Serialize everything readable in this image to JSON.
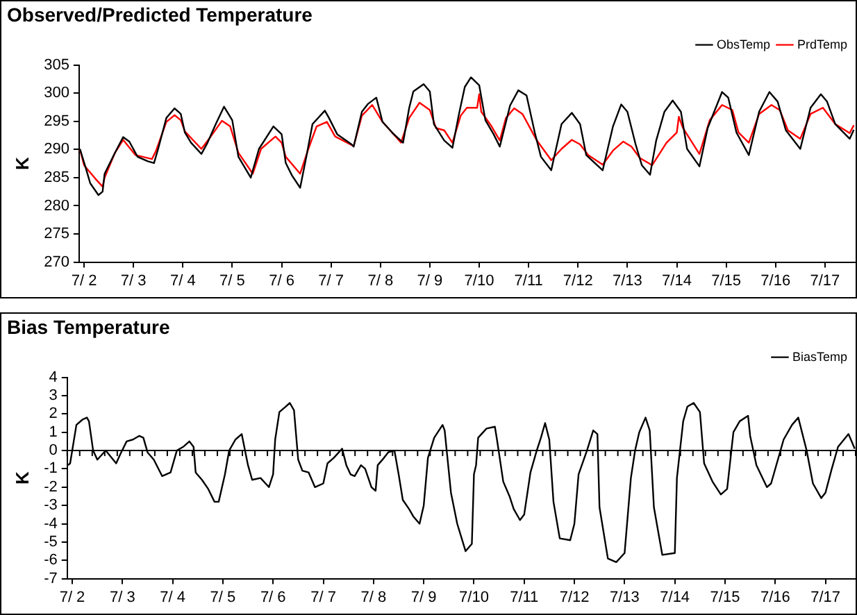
{
  "chart_data": [
    {
      "type": "line",
      "title": "Observed/Predicted Temperature",
      "ylabel": "K",
      "legend": "top right",
      "xlim": [
        "--07-01T21:36",
        "--07-17T14:53"
      ],
      "xticks": [
        {
          "value": "--07-02",
          "label": "7/ 2"
        },
        {
          "value": "--07-03",
          "label": "7/ 3"
        },
        {
          "value": "--07-04",
          "label": "7/ 4"
        },
        {
          "value": "--07-05",
          "label": "7/ 5"
        },
        {
          "value": "--07-06",
          "label": "7/ 6"
        },
        {
          "value": "--07-07",
          "label": "7/ 7"
        },
        {
          "value": "--07-08",
          "label": "7/ 8"
        },
        {
          "value": "--07-09",
          "label": "7/ 9"
        },
        {
          "value": "--07-10",
          "label": "7/10"
        },
        {
          "value": "--07-11",
          "label": "7/11"
        },
        {
          "value": "--07-12",
          "label": "7/12"
        },
        {
          "value": "--07-13",
          "label": "7/13"
        },
        {
          "value": "--07-14",
          "label": "7/14"
        },
        {
          "value": "--07-15",
          "label": "7/15"
        },
        {
          "value": "--07-16",
          "label": "7/16"
        },
        {
          "value": "--07-17",
          "label": "7/17"
        }
      ],
      "ylim": [
        270,
        305
      ],
      "yticks": [
        270,
        275,
        280,
        285,
        290,
        295,
        300,
        305
      ],
      "series": [
        {
          "name": "ObsTemp",
          "color": "#000000",
          "x": [
            "--07-01T22:00",
            "--07-02T01:00",
            "--07-02T03:00",
            "--07-02T07:00",
            "--07-02T09:00",
            "--07-02T10:00",
            "--07-02T15:00",
            "--07-02T19:00",
            "--07-02T22:00",
            "--07-03T02:00",
            "--07-03T07:00",
            "--07-03T10:00",
            "--07-03T12:00",
            "--07-03T16:00",
            "--07-03T20:00",
            "--07-03T23:00",
            "--07-04T01:00",
            "--07-04T04:00",
            "--07-04T09:00",
            "--07-04T12:00",
            "--07-04T16:00",
            "--07-04T20:00",
            "--07-05T00:00",
            "--07-05T03:00",
            "--07-05T09:00",
            "--07-05T13:00",
            "--07-05T20:00",
            "--07-06T00:00",
            "--07-06T02:00",
            "--07-06T05:00",
            "--07-06T09:00",
            "--07-06T12:00",
            "--07-06T15:00",
            "--07-06T21:00",
            "--07-06T23:00",
            "--07-07T03:00",
            "--07-07T10:00",
            "--07-07T11:00",
            "--07-07T15:00",
            "--07-07T18:00",
            "--07-07T22:00",
            "--07-08T01:00",
            "--07-08T06:00",
            "--07-08T11:00",
            "--07-08T14:00",
            "--07-08T16:00",
            "--07-08T21:00",
            "--07-09T00:00",
            "--07-09T02:00",
            "--07-09T07:00",
            "--07-09T11:00",
            "--07-09T14:00",
            "--07-09T17:00",
            "--07-09T20:00",
            "--07-10T00:00",
            "--07-10T03:00",
            "--07-10T07:00",
            "--07-10T10:00",
            "--07-10T15:00",
            "--07-10T19:00",
            "--07-10T23:00",
            "--07-11T03:00",
            "--07-11T06:00",
            "--07-11T11:00",
            "--07-11T16:00",
            "--07-11T21:00",
            "--07-12T01:00",
            "--07-12T04:00",
            "--07-12T12:00",
            "--07-12T17:00",
            "--07-12T21:00",
            "--07-13T00:00",
            "--07-13T04:00",
            "--07-13T07:00",
            "--07-13T11:00",
            "--07-13T14:00",
            "--07-13T18:00",
            "--07-13T22:00",
            "--07-14T02:00",
            "--07-14T05:00",
            "--07-14T11:00",
            "--07-14T15:00",
            "--07-14T22:00",
            "--07-15T01:00",
            "--07-15T05:00",
            "--07-15T11:00",
            "--07-15T16:00",
            "--07-15T21:00",
            "--07-16T01:00",
            "--07-16T05:00",
            "--07-16T12:00",
            "--07-16T17:00",
            "--07-16T22:00",
            "--07-17T01:00",
            "--07-17T05:00",
            "--07-17T12:00",
            "--07-17T14:00"
          ],
          "values": [
            290.1,
            286.5,
            284,
            281.9,
            282.5,
            285.7,
            289.4,
            292.2,
            291.4,
            288.7,
            287.9,
            287.6,
            290.1,
            295.6,
            297.3,
            296.3,
            293,
            291.2,
            289.2,
            291.2,
            294.5,
            297.6,
            295.2,
            288.7,
            285,
            290.1,
            294.1,
            292.7,
            287.6,
            285.4,
            283.2,
            288.7,
            294.5,
            296.9,
            295.6,
            292.7,
            290.9,
            290.5,
            296.7,
            298.1,
            299.2,
            294.9,
            292.9,
            291.2,
            297.4,
            300.3,
            301.6,
            300.3,
            294.5,
            291.6,
            290.3,
            296,
            301.1,
            302.8,
            301.4,
            295.2,
            292.7,
            290.5,
            297.8,
            300.5,
            299.6,
            293,
            288.7,
            286.3,
            294.5,
            296.5,
            294.5,
            289,
            286.3,
            294.1,
            298,
            296.7,
            290.9,
            287.2,
            285.5,
            291.6,
            296.7,
            298.7,
            296.7,
            290.1,
            287,
            293.8,
            300.2,
            299.2,
            293,
            289,
            296.7,
            300.2,
            298.5,
            293.4,
            290.1,
            297.4,
            299.8,
            298.5,
            294.5,
            291.9,
            293.5
          ]
        },
        {
          "name": "PrdTemp",
          "color": "#ff0000",
          "x": [
            "--07-01T22:00",
            "--07-02T00:00",
            "--07-02T06:00",
            "--07-02T09:00",
            "--07-02T10:00",
            "--07-02T15:00",
            "--07-02T19:00",
            "--07-03T01:00",
            "--07-03T09:00",
            "--07-03T11:00",
            "--07-03T16:00",
            "--07-03T20:00",
            "--07-03T23:00",
            "--07-04T01:00",
            "--07-04T09:00",
            "--07-04T13:00",
            "--07-04T19:00",
            "--07-04T23:00",
            "--07-05T03:00",
            "--07-05T10:00",
            "--07-05T14:00",
            "--07-05T21:00",
            "--07-06T00:00",
            "--07-06T02:00",
            "--07-06T09:00",
            "--07-06T13:00",
            "--07-06T17:00",
            "--07-06T22:00",
            "--07-07T02:00",
            "--07-07T11:00",
            "--07-07T15:00",
            "--07-07T20:00",
            "--07-08T01:00",
            "--07-08T10:00",
            "--07-08T14:00",
            "--07-08T19:00",
            "--07-09T00:00",
            "--07-09T03:00",
            "--07-09T07:00",
            "--07-09T11:00",
            "--07-09T15:00",
            "--07-09T18:00",
            "--07-09T23:00",
            "--07-10T00:00",
            "--07-10T01:00",
            "--07-10T06:00",
            "--07-10T10:00",
            "--07-10T13:00",
            "--07-10T17:00",
            "--07-10T21:00",
            "--07-11T04:00",
            "--07-11T11:00",
            "--07-11T16:00",
            "--07-11T21:00",
            "--07-12T01:00",
            "--07-12T05:00",
            "--07-12T12:00",
            "--07-12T17:00",
            "--07-12T22:00",
            "--07-13T02:00",
            "--07-13T06:00",
            "--07-13T12:00",
            "--07-13T19:00",
            "--07-14T00:00",
            "--07-14T01:00",
            "--07-14T03:00",
            "--07-14T11:00",
            "--07-14T16:00",
            "--07-14T22:00",
            "--07-15T03:00",
            "--07-15T06:00",
            "--07-15T11:00",
            "--07-15T16:00",
            "--07-15T22:00",
            "--07-16T02:00",
            "--07-16T06:00",
            "--07-16T12:00",
            "--07-16T17:00",
            "--07-16T23:00",
            "--07-17T05:00",
            "--07-17T12:00",
            "--07-17T14:00"
          ],
          "values": [
            290,
            287.2,
            284.6,
            283.4,
            285,
            289.4,
            291.7,
            289,
            288.3,
            289.8,
            294.9,
            296.1,
            295.2,
            293.2,
            290.1,
            292,
            295.1,
            294.1,
            289.4,
            285.7,
            290.1,
            292.3,
            291.2,
            288.7,
            285.7,
            290.1,
            294.1,
            294.9,
            292.3,
            290.6,
            296,
            297.9,
            294.9,
            291.2,
            295.6,
            298.3,
            297,
            293.8,
            293.4,
            291.2,
            296,
            297.4,
            297.4,
            299.8,
            296.7,
            294.1,
            291.6,
            295.6,
            297.3,
            296.3,
            291.6,
            288.1,
            290.1,
            291.7,
            290.9,
            289,
            287.3,
            289.8,
            291.4,
            290.5,
            288.5,
            287.2,
            291.2,
            293,
            295.8,
            293.8,
            289.2,
            295.2,
            297.9,
            297,
            293,
            291.2,
            296.3,
            297.9,
            297,
            293.4,
            291.9,
            296.3,
            297.4,
            294.5,
            292.9,
            294.3
          ]
        }
      ]
    },
    {
      "type": "line",
      "title": "Bias Temperature",
      "ylabel": "K",
      "legend": "top right",
      "xlim": [
        "--07-01T21:36",
        "--07-17T14:24"
      ],
      "xticks": [
        {
          "value": "--07-02",
          "label": "7/ 2"
        },
        {
          "value": "--07-03",
          "label": "7/ 3"
        },
        {
          "value": "--07-04",
          "label": "7/ 4"
        },
        {
          "value": "--07-05",
          "label": "7/ 5"
        },
        {
          "value": "--07-06",
          "label": "7/ 6"
        },
        {
          "value": "--07-07",
          "label": "7/ 7"
        },
        {
          "value": "--07-08",
          "label": "7/ 8"
        },
        {
          "value": "--07-09",
          "label": "7/ 9"
        },
        {
          "value": "--07-10",
          "label": "7/10"
        },
        {
          "value": "--07-11",
          "label": "7/11"
        },
        {
          "value": "--07-12",
          "label": "7/12"
        },
        {
          "value": "--07-13",
          "label": "7/13"
        },
        {
          "value": "--07-14",
          "label": "7/14"
        },
        {
          "value": "--07-15",
          "label": "7/15"
        },
        {
          "value": "--07-16",
          "label": "7/16"
        },
        {
          "value": "--07-17",
          "label": "7/17"
        }
      ],
      "ylim": [
        -7,
        4
      ],
      "yticks": [
        -7,
        -6,
        -5,
        -4,
        -3,
        -2,
        -1,
        0,
        1,
        2,
        3,
        4
      ],
      "series": [
        {
          "name": "BiasTemp",
          "color": "#000000",
          "x": [
            "--07-01T22:00",
            "--07-01T23:00",
            "--07-02T02:00",
            "--07-02T05:00",
            "--07-02T07:00",
            "--07-02T08:00",
            "--07-02T10:00",
            "--07-02T12:00",
            "--07-02T16:00",
            "--07-02T21:00",
            "--07-02T23:00",
            "--07-03T02:00",
            "--07-03T05:00",
            "--07-03T08:00",
            "--07-03T10:00",
            "--07-03T12:00",
            "--07-03T15:00",
            "--07-03T19:00",
            "--07-03T23:00",
            "--07-04T02:00",
            "--07-04T05:00",
            "--07-04T08:00",
            "--07-04T10:00",
            "--07-04T11:00",
            "--07-04T14:00",
            "--07-04T17:00",
            "--07-04T20:00",
            "--07-04T22:00",
            "--07-05T01:00",
            "--07-05T03:00",
            "--07-05T06:00",
            "--07-05T09:00",
            "--07-05T12:00",
            "--07-05T14:00",
            "--07-05T18:00",
            "--07-05T22:00",
            "--07-06T00:00",
            "--07-06T01:00",
            "--07-06T03:00",
            "--07-06T06:00",
            "--07-06T08:00",
            "--07-06T10:00",
            "--07-06T12:00",
            "--07-06T14:00",
            "--07-06T17:00",
            "--07-06T20:00",
            "--07-07T00:00",
            "--07-07T02:00",
            "--07-07T05:00",
            "--07-07T09:00",
            "--07-07T11:00",
            "--07-07T13:00",
            "--07-07T15:00",
            "--07-07T18:00",
            "--07-07T20:00",
            "--07-07T23:00",
            "--07-08T01:00",
            "--07-08T02:00",
            "--07-08T05:00",
            "--07-08T07:00",
            "--07-08T10:00",
            "--07-08T12:00",
            "--07-08T14:00",
            "--07-08T17:00",
            "--07-08T19:00",
            "--07-08T22:00",
            "--07-09T00:00",
            "--07-09T02:00",
            "--07-09T05:00",
            "--07-09T09:00",
            "--07-09T10:00",
            "--07-09T13:00",
            "--07-09T16:00",
            "--07-09T20:00",
            "--07-09T23:00",
            "--07-10T00:00",
            "--07-10T01:00",
            "--07-10T02:00",
            "--07-10T06:00",
            "--07-10T10:00",
            "--07-10T11:00",
            "--07-10T14:00",
            "--07-10T17:00",
            "--07-10T19:00",
            "--07-10T22:00",
            "--07-11T00:00",
            "--07-11T03:00",
            "--07-11T06:00",
            "--07-11T08:00",
            "--07-11T10:00",
            "--07-11T12:00",
            "--07-11T14:00",
            "--07-11T17:00",
            "--07-11T22:00",
            "--07-12T00:00",
            "--07-12T02:00",
            "--07-12T06:00",
            "--07-12T09:00",
            "--07-12T11:00",
            "--07-12T12:00",
            "--07-12T16:00",
            "--07-12T20:00",
            "--07-13T00:00",
            "--07-13T03:00",
            "--07-13T05:00",
            "--07-13T07:00",
            "--07-13T10:00",
            "--07-13T12:00",
            "--07-13T14:00",
            "--07-13T18:00",
            "--07-14T00:00",
            "--07-14T01:00",
            "--07-14T04:00",
            "--07-14T06:00",
            "--07-14T09:00",
            "--07-14T12:00",
            "--07-14T14:00",
            "--07-14T18:00",
            "--07-14T22:00",
            "--07-15T01:00",
            "--07-15T04:00",
            "--07-15T07:00",
            "--07-15T11:00",
            "--07-15T12:00",
            "--07-15T15:00",
            "--07-15T20:00",
            "--07-15T22:00",
            "--07-16T04:00",
            "--07-16T08:00",
            "--07-16T11:00",
            "--07-16T15:00",
            "--07-16T18:00",
            "--07-16T22:00",
            "--07-17T00:00",
            "--07-17T03:00",
            "--07-17T06:00",
            "--07-17T11:00",
            "--07-17T14:00"
          ],
          "values": [
            -0.8,
            -0.7,
            1.4,
            1.7,
            1.8,
            1.6,
            0,
            -0.5,
            0,
            -0.7,
            -0.2,
            0.5,
            0.6,
            0.8,
            0.7,
            -0.1,
            -0.5,
            -1.4,
            -1.2,
            0,
            0.2,
            0.5,
            0.2,
            -1.2,
            -1.6,
            -2.1,
            -2.8,
            -2.8,
            -1.3,
            0,
            0.6,
            0.9,
            -0.8,
            -1.6,
            -1.5,
            -2,
            -1.3,
            0.6,
            2.1,
            2.4,
            2.6,
            2.2,
            -0.5,
            -1.1,
            -1.2,
            -2,
            -1.8,
            -0.7,
            -0.4,
            0.1,
            -0.8,
            -1.3,
            -1.4,
            -0.8,
            -1,
            -2,
            -2.2,
            -0.8,
            -0.4,
            -0.1,
            0,
            -1.3,
            -2.7,
            -3.2,
            -3.6,
            -4,
            -3,
            -0.4,
            0.7,
            1.4,
            1.1,
            -2.3,
            -4,
            -5.5,
            -5.1,
            -1.3,
            -0.8,
            0.7,
            1.2,
            1.3,
            0.6,
            -1.7,
            -2.5,
            -3.2,
            -3.8,
            -3.5,
            -1.2,
            0,
            0.7,
            1.5,
            0.6,
            -2.8,
            -4.8,
            -4.9,
            -4,
            -1.3,
            0,
            1.1,
            0.9,
            -3.1,
            -5.9,
            -6.1,
            -5.6,
            -1.5,
            0,
            1,
            1.8,
            1.1,
            -3.1,
            -5.7,
            -5.6,
            -1.5,
            1.6,
            2.4,
            2.6,
            2.1,
            -0.7,
            -1.7,
            -2.4,
            -2.1,
            1,
            1.6,
            1.9,
            0.8,
            -0.8,
            -2,
            -1.8,
            0.6,
            1.4,
            1.8,
            0,
            -1.8,
            -2.6,
            -2.3,
            -1,
            0.2,
            0.9,
            0.1
          ]
        }
      ]
    }
  ]
}
